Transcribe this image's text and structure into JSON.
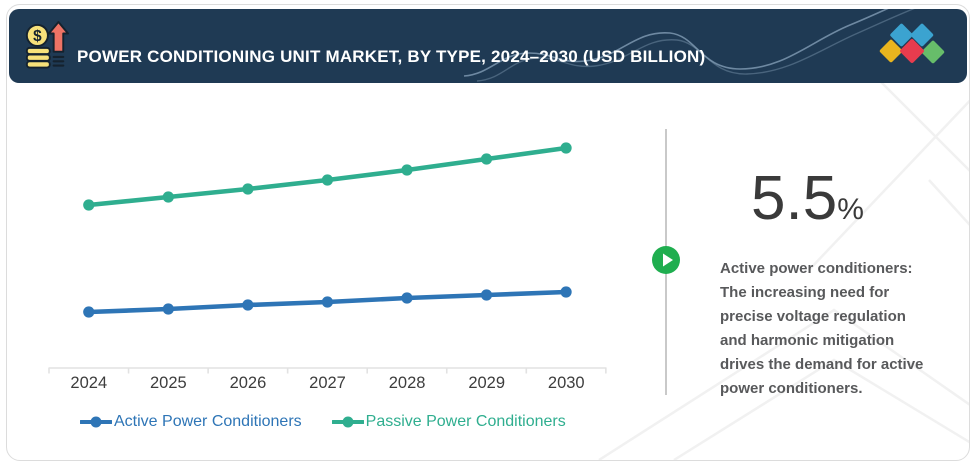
{
  "header": {
    "title": "POWER CONDITIONING UNIT MARKET, BY TYPE, 2024–2030 (USD BILLION)",
    "icon": "money-growth-icon",
    "diamond_colors": [
      "#e9b51e",
      "#3ba3d0",
      "#e73c4e",
      "#3ba3d0",
      "#67bd6a"
    ]
  },
  "chart_data": {
    "type": "line",
    "title": "POWER CONDITIONING UNIT MARKET, BY TYPE, 2024–2030 (USD BILLION)",
    "categories": [
      "2024",
      "2025",
      "2026",
      "2027",
      "2028",
      "2029",
      "2030"
    ],
    "series": [
      {
        "name": "Active Power Conditioners",
        "color": "#2e75b6",
        "values": [
          0.56,
          0.59,
          0.63,
          0.66,
          0.7,
          0.73,
          0.76
        ]
      },
      {
        "name": "Passive Power Conditioners",
        "color": "#2fae8f",
        "values": [
          1.63,
          1.71,
          1.79,
          1.88,
          1.98,
          2.09,
          2.2
        ]
      }
    ],
    "xlabel": "",
    "ylabel": "",
    "units": "USD Billion (y-axis not labeled in figure; values estimated from line positions)",
    "ylim": [
      0,
      2.6
    ],
    "grid": false,
    "legend_position": "bottom"
  },
  "callout": {
    "value": "5.5",
    "unit": "%",
    "description": "Active power conditioners: The increasing need for precise voltage regulation and harmonic mitigation drives the demand for active power conditioners."
  },
  "colors": {
    "navy": "#1f3a54",
    "title_text": "#ffffff",
    "card_border": "#dcdcdc",
    "axis": "#e2e2e2",
    "year_label": "#3d3d3d",
    "legend_text": "#1d1d1d",
    "number": "#3a3a3a",
    "body_text": "#58595b",
    "divider": "#c9c9c9",
    "play": "#1fae4f",
    "coin": "#f7e17a",
    "arrow": "#ee7365",
    "icon_outline": "#15222e",
    "wave": "#8aa4bc",
    "watermark": "#f1f1f1"
  }
}
